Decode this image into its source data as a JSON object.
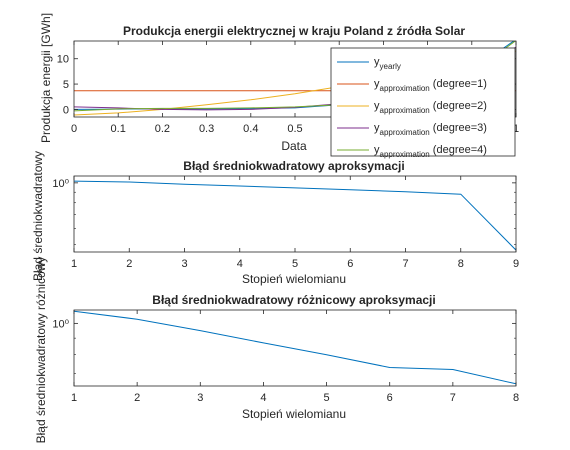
{
  "colors": {
    "series1": "#0072bd",
    "series2": "#d95319",
    "series3": "#edb120",
    "series4": "#7e2f8e",
    "series5": "#77ac30",
    "axis": "#262626",
    "background": "#ffffff"
  },
  "chart_data": [
    {
      "type": "line",
      "title": "Produkcja energii elektrycznej w kraju Poland z źródła Solar",
      "xlabel": "Data",
      "ylabel": "Produkcja energii [GWh]",
      "xlim": [
        0,
        1
      ],
      "ylim": [
        -1.5,
        13.5
      ],
      "xticks": [
        0,
        0.1,
        0.2,
        0.3,
        0.4,
        0.5,
        0.6,
        0.7,
        0.8,
        0.9,
        1
      ],
      "xtick_labels": [
        "0",
        "0.1",
        "0.2",
        "0.3",
        "0.4",
        "0.5",
        "",
        "",
        "",
        "",
        "1"
      ],
      "yticks": [
        0,
        5,
        10
      ],
      "ytick_labels": [
        "0",
        "5",
        "10"
      ],
      "legend_position": "top-right",
      "series": [
        {
          "name": "y",
          "name_sub": "yearly",
          "x": [
            0,
            0.1,
            0.2,
            0.3,
            0.4,
            0.5,
            0.6,
            0.7,
            0.8,
            0.9,
            1
          ],
          "y": [
            0.0,
            0.05,
            0.1,
            0.1,
            0.15,
            0.3,
            0.9,
            2.1,
            4.0,
            7.8,
            13.8
          ]
        },
        {
          "name": "y",
          "name_sub": "approximation",
          "name_suffix": " (degree=1)",
          "x": [
            0,
            1
          ],
          "y": [
            3.7,
            3.7
          ]
        },
        {
          "name": "y",
          "name_sub": "approximation",
          "name_suffix": " (degree=2)",
          "x": [
            0,
            0.1,
            0.2,
            0.3,
            0.4,
            0.5,
            0.6,
            0.7,
            0.8,
            0.9,
            1
          ],
          "y": [
            -1.1,
            -0.7,
            0.0,
            0.9,
            1.9,
            3.1,
            4.5,
            6.0,
            7.7,
            9.5,
            11.5
          ]
        },
        {
          "name": "y",
          "name_sub": "approximation",
          "name_suffix": " (degree=3)",
          "x": [
            0,
            0.1,
            0.2,
            0.3,
            0.4,
            0.5,
            0.6,
            0.7,
            0.8,
            0.9,
            1
          ],
          "y": [
            0.5,
            0.3,
            0.0,
            -0.1,
            0.0,
            0.4,
            1.1,
            2.3,
            4.2,
            6.9,
            12.3
          ]
        },
        {
          "name": "y",
          "name_sub": "approximation",
          "name_suffix": " (degree=4)",
          "x": [
            0,
            0.1,
            0.2,
            0.3,
            0.4,
            0.5,
            0.6,
            0.7,
            0.8,
            0.9,
            1
          ],
          "y": [
            -0.3,
            0.1,
            0.2,
            0.2,
            0.3,
            0.5,
            0.9,
            1.9,
            3.8,
            7.2,
            13.6
          ]
        }
      ]
    },
    {
      "type": "line",
      "title": "Błąd średniokwadratowy aproksymacji",
      "xlabel": "Stopień wielomianu",
      "ylabel": "Błąd średniokwadratowy",
      "yscale": "log",
      "xlim": [
        1,
        9
      ],
      "ylim": [
        0.46,
        1.08
      ],
      "xticks": [
        1,
        2,
        3,
        4,
        5,
        6,
        7,
        8,
        9
      ],
      "yticks": [
        1
      ],
      "ytick_labels": [
        "10⁰"
      ],
      "series": [
        {
          "x": [
            1,
            2,
            3,
            4,
            5,
            6,
            7,
            8,
            9
          ],
          "y": [
            1.02,
            1.01,
            0.985,
            0.965,
            0.945,
            0.925,
            0.905,
            0.88,
            0.47
          ]
        }
      ]
    },
    {
      "type": "line",
      "title": "Błąd średniokwadratowy różnicowy aproksymacji",
      "xlabel": "Stopień wielomianu",
      "ylabel": "Błąd średniokwadratowy różnicowy",
      "yscale": "log",
      "xlim": [
        1,
        8
      ],
      "ylim": [
        0.64,
        1.1
      ],
      "xticks": [
        1,
        2,
        3,
        4,
        5,
        6,
        7,
        8
      ],
      "yticks": [
        1
      ],
      "ytick_labels": [
        "10⁰"
      ],
      "series": [
        {
          "x": [
            1,
            2,
            3,
            4,
            5,
            6,
            7,
            8
          ],
          "y": [
            1.09,
            1.03,
            0.95,
            0.87,
            0.8,
            0.73,
            0.72,
            0.65
          ]
        }
      ]
    }
  ]
}
